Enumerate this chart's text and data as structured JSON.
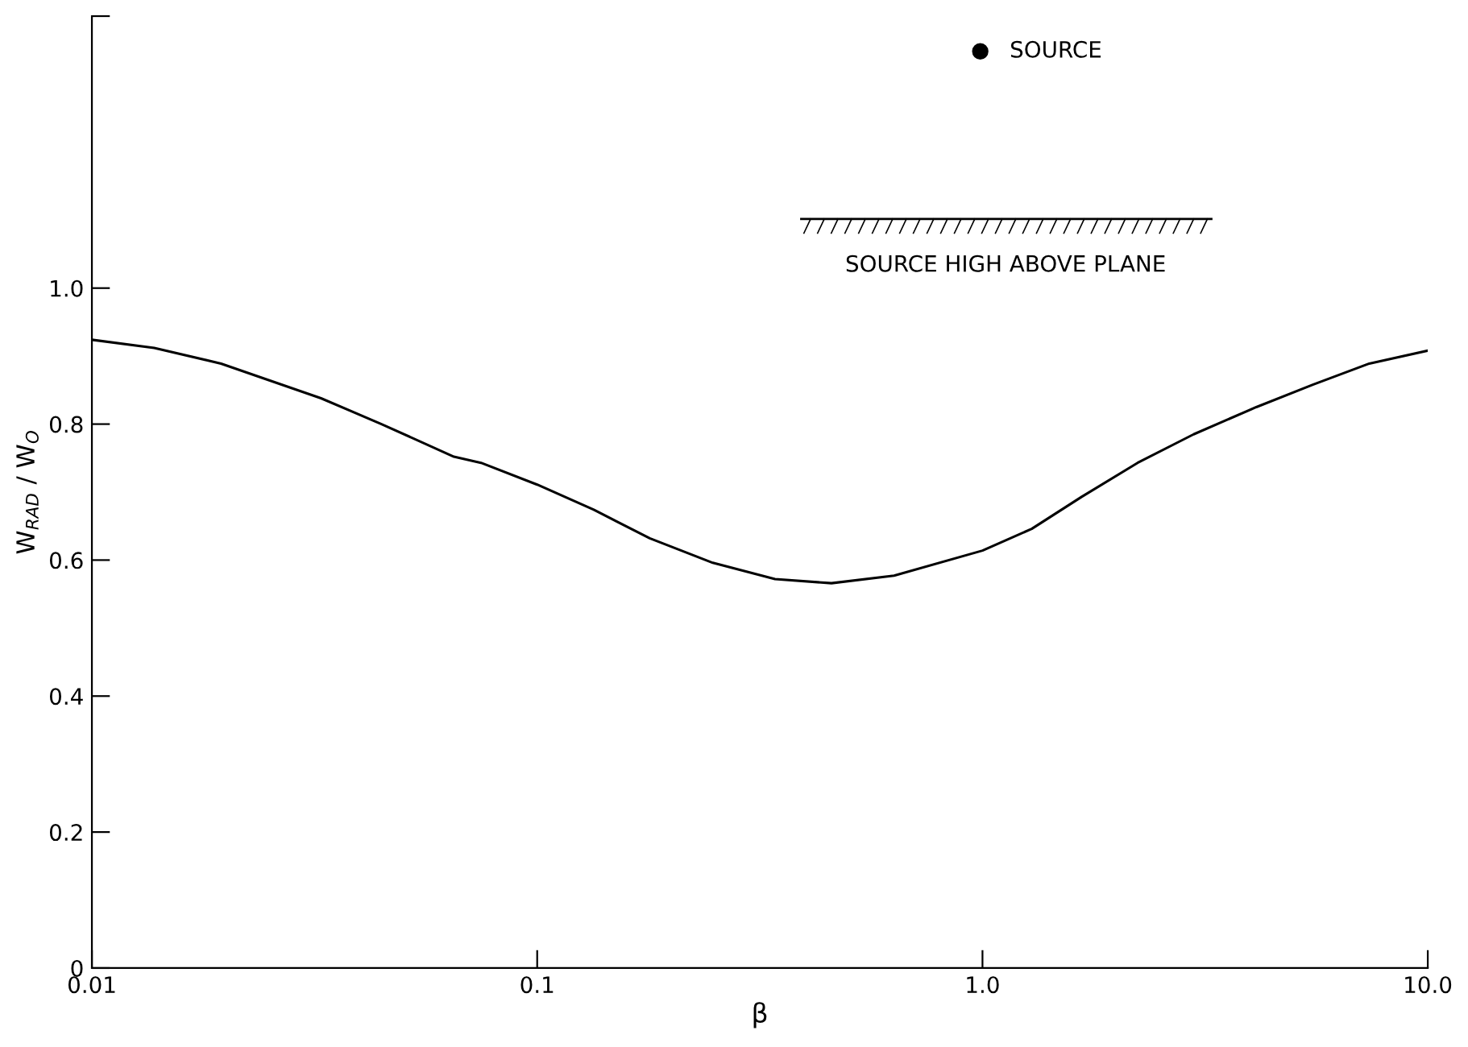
{
  "chart_data": {
    "type": "line",
    "xlabel": "β",
    "ylabel": "W$_{RAD}$ / W$_{O}$",
    "x": [
      0.01,
      0.0138,
      0.0195,
      0.0327,
      0.0447,
      0.065,
      0.0748,
      0.1,
      0.134,
      0.179,
      0.248,
      0.342,
      0.458,
      0.633,
      1.0,
      1.29,
      1.67,
      2.23,
      2.98,
      4.12,
      5.52,
      7.39,
      10.0
    ],
    "series": [
      {
        "color": "#000000",
        "values": [
          0.924,
          0.912,
          0.889,
          0.838,
          0.8,
          0.752,
          0.743,
          0.711,
          0.674,
          0.632,
          0.596,
          0.572,
          0.566,
          0.577,
          0.614,
          0.646,
          0.693,
          0.743,
          0.785,
          0.825,
          0.858,
          0.889,
          0.908
        ]
      }
    ],
    "log": "x",
    "xlim": [
      0.01,
      10.0
    ],
    "xticks": [
      {
        "value": 0.01,
        "label": "0.01"
      },
      {
        "value": 0.1,
        "label": "0.1"
      },
      {
        "value": 1.0,
        "label": "1.0"
      },
      {
        "value": 10.0,
        "label": "10.0"
      }
    ],
    "ylim": [
      0,
      1.4
    ],
    "yticks": [
      0,
      0.2,
      0.4,
      0.6,
      0.8,
      {
        "value": 1.0,
        "label": "1.0"
      },
      {
        "value": 1.4,
        "label": null
      }
    ],
    "grid": false,
    "marker": "none",
    "line_style": "solid",
    "annotations": [
      "SOURCE",
      "SOURCE HIGH ABOVE PLANE"
    ]
  }
}
